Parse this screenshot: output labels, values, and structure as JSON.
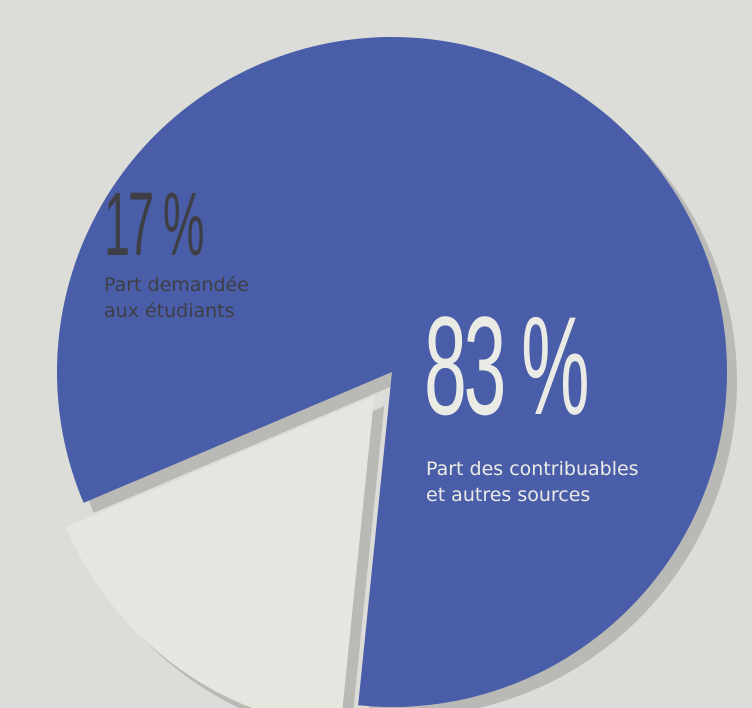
{
  "chart_data": {
    "type": "pie",
    "slices": [
      {
        "value": 83,
        "value_label": "83 %",
        "label_lines": [
          "Part des contribuables",
          "et autres sources"
        ],
        "color": "#4a5da8"
      },
      {
        "value": 17,
        "value_label": "17 %",
        "label_lines": [
          "Part demandée",
          "aux étudiants"
        ],
        "color": "#e6e6e1",
        "exploded": true
      }
    ]
  },
  "colors": {
    "background": "#dcdcd8",
    "shadow": "#b9b9b5"
  }
}
